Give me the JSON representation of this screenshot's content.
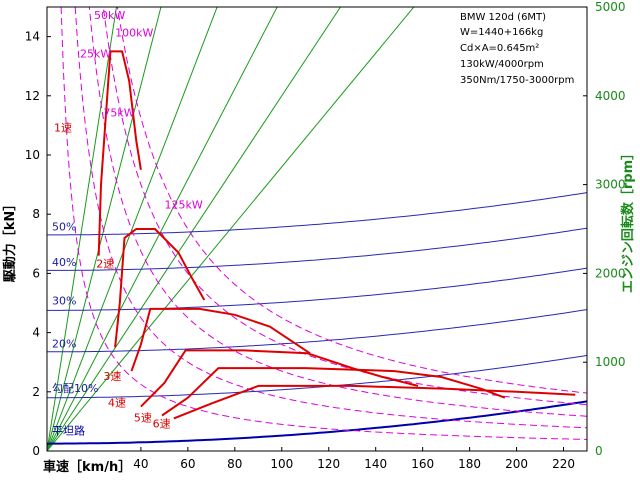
{
  "chart_data": {
    "type": "line",
    "title": "",
    "xlabel": "車速［km/h］",
    "ylabel": "駆動力［kN］",
    "y2label": "エンジン回転数［rpm］",
    "xlim": [
      0,
      230
    ],
    "ylim": [
      0,
      15
    ],
    "y2lim": [
      0,
      5000
    ],
    "xticks": [
      40,
      60,
      80,
      100,
      120,
      140,
      160,
      180,
      200,
      220
    ],
    "yticks": [
      0,
      2,
      4,
      6,
      8,
      10,
      12,
      14
    ],
    "y2ticks": [
      0,
      1000,
      2000,
      3000,
      4000,
      5000
    ],
    "colors": {
      "frame": "#000000",
      "drive_force": "#dd0000",
      "power_curves": "#dd00dd",
      "grade_resistance": "#2828b4",
      "flat_resistance": "#0000aa",
      "engine_rpm": "#1a9a1a",
      "y2_axis": "#1a8a1a"
    },
    "info_box": {
      "lines": [
        "BMW 120d (6MT)",
        "W=1440+166kg",
        "Cd×A=0.645m²",
        "130kW/4000rpm",
        "350Nm/1750-3000rpm"
      ]
    },
    "power_curves": [
      {
        "label": "25kW",
        "kw": 25
      },
      {
        "label": "50kW",
        "kw": 50
      },
      {
        "label": "75kW",
        "kw": 75
      },
      {
        "label": "100kW",
        "kw": 100
      },
      {
        "label": "125kW",
        "kw": 125
      }
    ],
    "grade_resistance": [
      {
        "label": "平坦路",
        "grade": 0,
        "y_at_0": 0.25
      },
      {
        "label": "勾配10%",
        "grade": 10,
        "y_at_0": 1.8
      },
      {
        "label": "20%",
        "grade": 20,
        "y_at_0": 3.35
      },
      {
        "label": "30%",
        "grade": 30,
        "y_at_0": 4.75
      },
      {
        "label": "40%",
        "grade": 40,
        "y_at_0": 6.1
      },
      {
        "label": "50%",
        "grade": 50,
        "y_at_0": 7.3
      }
    ],
    "aero_coeff": 2.7e-05,
    "gears": [
      {
        "label": "1速",
        "points": [
          [
            22,
            6.6
          ],
          [
            23,
            9
          ],
          [
            27,
            13.5
          ],
          [
            32,
            13.5
          ],
          [
            35,
            12.5
          ],
          [
            38,
            10.5
          ],
          [
            40,
            9.5
          ]
        ]
      },
      {
        "label": "2速",
        "points": [
          [
            29,
            3.5
          ],
          [
            31,
            5
          ],
          [
            33,
            7.2
          ],
          [
            38,
            7.5
          ],
          [
            46,
            7.5
          ],
          [
            56,
            6.7
          ],
          [
            62,
            5.8
          ],
          [
            67,
            5.1
          ]
        ]
      },
      {
        "label": "3速",
        "points": [
          [
            36,
            2.7
          ],
          [
            40,
            3.6
          ],
          [
            44,
            4.8
          ],
          [
            65,
            4.8
          ],
          [
            80,
            4.6
          ],
          [
            95,
            4.2
          ],
          [
            112,
            3.3
          ]
        ]
      },
      {
        "label": "4速",
        "points": [
          [
            40,
            1.5
          ],
          [
            50,
            2.3
          ],
          [
            59,
            3.4
          ],
          [
            84,
            3.4
          ],
          [
            111,
            3.3
          ],
          [
            130,
            2.8
          ],
          [
            143,
            2.5
          ],
          [
            158,
            2.2
          ]
        ]
      },
      {
        "label": "5速",
        "points": [
          [
            49,
            1.2
          ],
          [
            60,
            1.8
          ],
          [
            73,
            2.8
          ],
          [
            110,
            2.8
          ],
          [
            148,
            2.7
          ],
          [
            168,
            2.5
          ],
          [
            185,
            2.1
          ],
          [
            195,
            1.8
          ]
        ]
      },
      {
        "label": "6速",
        "points": [
          [
            54,
            1.1
          ],
          [
            70,
            1.6
          ],
          [
            90,
            2.2
          ],
          [
            130,
            2.2
          ],
          [
            170,
            2.1
          ],
          [
            200,
            2.0
          ],
          [
            225,
            1.9
          ]
        ]
      }
    ],
    "rpm_lines_slopes_rpm_per_kmh": [
      169,
      103,
      69,
      51,
      40,
      32
    ]
  }
}
